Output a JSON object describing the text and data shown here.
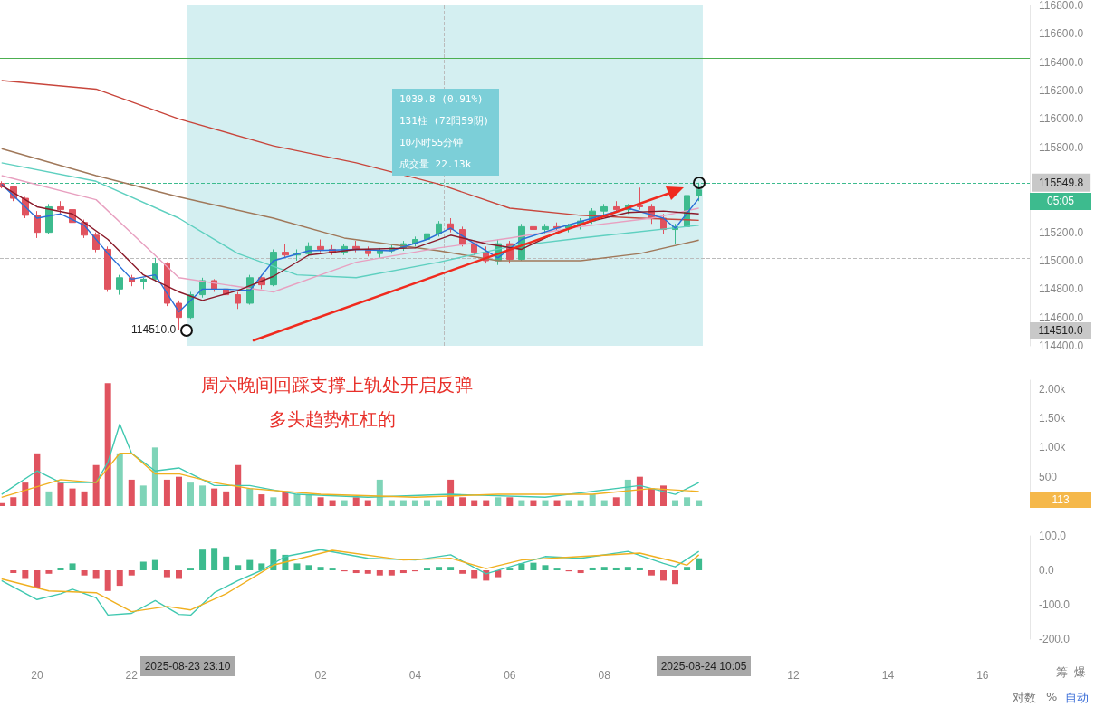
{
  "chart_data": [
    {
      "type": "candlestick",
      "tick_labels": "y",
      "xlim": [
        "2025-08-23T19:13",
        "2025-08-24T17:00"
      ],
      "ylim": [
        114400,
        116800
      ],
      "yticks": [
        {
          "value": 114400,
          "label": "114400.0"
        },
        {
          "value": 114600,
          "label": "114600.0"
        },
        {
          "value": 114800,
          "label": "114800.0"
        },
        {
          "value": 115000,
          "label": "115000.0"
        },
        {
          "value": 115200,
          "label": "115200.0"
        },
        {
          "value": 115800,
          "label": "115800.0"
        },
        {
          "value": 116000,
          "label": "116000.0"
        },
        {
          "value": 116200,
          "label": "116200.0"
        },
        {
          "value": 116400,
          "label": "116400.0"
        },
        {
          "value": 116600,
          "label": "116600.0"
        },
        {
          "value": 116800,
          "label": "116800.0"
        }
      ],
      "x": [
        "2025-08-23T19:15",
        "2025-08-23T19:30",
        "2025-08-23T19:45",
        "2025-08-23T20:00",
        "2025-08-23T20:15",
        "2025-08-23T20:30",
        "2025-08-23T20:45",
        "2025-08-23T21:00",
        "2025-08-23T21:15",
        "2025-08-23T21:30",
        "2025-08-23T21:45",
        "2025-08-23T22:00",
        "2025-08-23T22:15",
        "2025-08-23T22:30",
        "2025-08-23T22:45",
        "2025-08-23T23:00",
        "2025-08-23T23:15",
        "2025-08-23T23:30",
        "2025-08-23T23:45",
        "2025-08-24T00:00",
        "2025-08-24T00:15",
        "2025-08-24T00:30",
        "2025-08-24T00:45",
        "2025-08-24T01:00",
        "2025-08-24T01:15",
        "2025-08-24T01:30",
        "2025-08-24T01:45",
        "2025-08-24T02:00",
        "2025-08-24T02:15",
        "2025-08-24T02:30",
        "2025-08-24T02:45",
        "2025-08-24T03:00",
        "2025-08-24T03:15",
        "2025-08-24T03:30",
        "2025-08-24T03:45",
        "2025-08-24T04:00",
        "2025-08-24T04:15",
        "2025-08-24T04:30",
        "2025-08-24T04:45",
        "2025-08-24T05:00",
        "2025-08-24T05:15",
        "2025-08-24T05:30",
        "2025-08-24T05:45",
        "2025-08-24T06:00",
        "2025-08-24T06:15",
        "2025-08-24T06:30",
        "2025-08-24T06:45",
        "2025-08-24T07:00",
        "2025-08-24T07:15",
        "2025-08-24T07:30",
        "2025-08-24T07:45",
        "2025-08-24T08:00",
        "2025-08-24T08:15",
        "2025-08-24T08:30",
        "2025-08-24T08:45",
        "2025-08-24T09:00",
        "2025-08-24T09:15",
        "2025-08-24T09:30",
        "2025-08-24T09:45",
        "2025-08-24T10:00"
      ],
      "series": [
        {
          "colors": [
            "#e0535f",
            "#e0535f",
            "#e0535f",
            "#e0535f",
            "#3dbb8e",
            "#e0535f",
            "#e0535f",
            "#e0535f",
            "#e0535f",
            "#e0535f",
            "#3dbb8e",
            "#e0535f",
            "#3dbb8e",
            "#3dbb8e",
            "#e0535f",
            "#e0535f",
            "#3dbb8e",
            "#3dbb8e",
            "#e0535f",
            "#e0535f",
            "#e0535f",
            "#3dbb8e",
            "#e0535f",
            "#3dbb8e",
            "#e0535f",
            "#3dbb8e",
            "#3dbb8e",
            "#e0535f",
            "#e0535f",
            "#3dbb8e",
            "#e0535f",
            "#e0535f",
            "#3dbb8e",
            "#3dbb8e",
            "#3dbb8e",
            "#3dbb8e",
            "#3dbb8e",
            "#3dbb8e",
            "#e0535f",
            "#e0535f",
            "#e0535f",
            "#e0535f",
            "#3dbb8e",
            "#e0535f",
            "#3dbb8e",
            "#e0535f",
            "#3dbb8e",
            "#e0535f",
            "#3dbb8e",
            "#3dbb8e",
            "#3dbb8e",
            "#3dbb8e",
            "#e0535f",
            "#3dbb8e",
            "#e0535f",
            "#e0535f",
            "#e0535f",
            "#3dbb8e",
            "#3dbb8e",
            "#3dbb8e"
          ],
          "ohlc": [
            [
              115545,
              115560,
              115510,
              115520
            ],
            [
              115520,
              115530,
              115420,
              115440
            ],
            [
              115440,
              115450,
              115300,
              115320
            ],
            [
              115320,
              115350,
              115160,
              115200
            ],
            [
              115200,
              115400,
              115190,
              115380
            ],
            [
              115380,
              115420,
              115330,
              115360
            ],
            [
              115360,
              115380,
              115250,
              115270
            ],
            [
              115270,
              115290,
              115160,
              115180
            ],
            [
              115180,
              115200,
              115060,
              115080
            ],
            [
              115080,
              115100,
              114780,
              114800
            ],
            [
              114800,
              114900,
              114760,
              114880
            ],
            [
              114880,
              114900,
              114820,
              114850
            ],
            [
              114850,
              114880,
              114800,
              114870
            ],
            [
              114870,
              115020,
              114850,
              114980
            ],
            [
              114980,
              114990,
              114680,
              114700
            ],
            [
              114700,
              114720,
              114510,
              114600
            ],
            [
              114600,
              114780,
              114590,
              114760
            ],
            [
              114760,
              114880,
              114740,
              114860
            ],
            [
              114860,
              114870,
              114780,
              114800
            ],
            [
              114800,
              114820,
              114740,
              114760
            ],
            [
              114760,
              114780,
              114660,
              114700
            ],
            [
              114700,
              114900,
              114690,
              114880
            ],
            [
              114880,
              114900,
              114800,
              114830
            ],
            [
              114830,
              115080,
              114820,
              115060
            ],
            [
              115060,
              115120,
              115020,
              115040
            ],
            [
              115040,
              115080,
              115000,
              115050
            ],
            [
              115050,
              115130,
              115030,
              115100
            ],
            [
              115100,
              115150,
              115060,
              115080
            ],
            [
              115080,
              115110,
              115040,
              115060
            ],
            [
              115060,
              115120,
              115040,
              115100
            ],
            [
              115100,
              115140,
              115060,
              115080
            ],
            [
              115080,
              115100,
              115030,
              115050
            ],
            [
              115050,
              115090,
              115020,
              115070
            ],
            [
              115070,
              115110,
              115050,
              115090
            ],
            [
              115090,
              115140,
              115070,
              115120
            ],
            [
              115120,
              115170,
              115100,
              115150
            ],
            [
              115150,
              115210,
              115130,
              115190
            ],
            [
              115190,
              115280,
              115170,
              115260
            ],
            [
              115260,
              115300,
              115200,
              115220
            ],
            [
              115220,
              115240,
              115100,
              115120
            ],
            [
              115120,
              115130,
              115040,
              115060
            ],
            [
              115060,
              115100,
              114980,
              115000
            ],
            [
              115000,
              115150,
              114970,
              115120
            ],
            [
              115120,
              115140,
              114980,
              115010
            ],
            [
              115010,
              115260,
              115000,
              115240
            ],
            [
              115240,
              115270,
              115200,
              115220
            ],
            [
              115220,
              115260,
              115190,
              115240
            ],
            [
              115240,
              115270,
              115210,
              115230
            ],
            [
              115230,
              115260,
              115200,
              115250
            ],
            [
              115250,
              115300,
              115220,
              115280
            ],
            [
              115280,
              115370,
              115260,
              115350
            ],
            [
              115350,
              115400,
              115320,
              115380
            ],
            [
              115380,
              115420,
              115340,
              115360
            ],
            [
              115360,
              115400,
              115330,
              115390
            ],
            [
              115390,
              115515,
              115360,
              115380
            ],
            [
              115380,
              115400,
              115260,
              115300
            ],
            [
              115300,
              115330,
              115190,
              115220
            ],
            [
              115220,
              115260,
              115120,
              115240
            ],
            [
              115240,
              115480,
              115230,
              115460
            ],
            [
              115460,
              115549.8,
              115420,
              115500
            ]
          ]
        },
        {
          "type": "line",
          "color": "#c8463c",
          "x": [
            "2025-08-23T19:15",
            "2025-08-23T21:15",
            "2025-08-23T23:00",
            "2025-08-24T01:00",
            "2025-08-24T02:45",
            "2025-08-24T04:30",
            "2025-08-24T06:00",
            "2025-08-24T07:30",
            "2025-08-24T08:45",
            "2025-08-24T10:00"
          ],
          "values": [
            116270,
            116210,
            116000,
            115810,
            115690,
            115540,
            115370,
            115320,
            115300,
            115285
          ]
        },
        {
          "type": "line",
          "color": "#a0785a",
          "x": [
            "2025-08-23T19:15",
            "2025-08-23T21:15",
            "2025-08-23T23:00",
            "2025-08-24T01:00",
            "2025-08-24T02:30",
            "2025-08-24T04:30",
            "2025-08-24T05:45",
            "2025-08-24T07:30",
            "2025-08-24T08:45",
            "2025-08-24T10:00"
          ],
          "values": [
            115790,
            115600,
            115450,
            115300,
            115160,
            115070,
            115000,
            115000,
            115050,
            115145
          ]
        },
        {
          "type": "line",
          "color": "#5fd0c0",
          "x": [
            "2025-08-23T19:15",
            "2025-08-23T21:15",
            "2025-08-23T23:00",
            "2025-08-24T00:15",
            "2025-08-24T01:30",
            "2025-08-24T02:45",
            "2025-08-24T04:30",
            "2025-08-24T06:00",
            "2025-08-24T07:30",
            "2025-08-24T10:00"
          ],
          "values": [
            115690,
            115560,
            115300,
            115050,
            114900,
            114880,
            114990,
            115100,
            115160,
            115250
          ]
        },
        {
          "type": "line",
          "color": "#e8a0c0",
          "x": [
            "2025-08-23T19:15",
            "2025-08-23T21:15",
            "2025-08-23T23:00",
            "2025-08-24T01:00",
            "2025-08-24T02:00",
            "2025-08-24T02:45",
            "2025-08-24T04:30",
            "2025-08-24T06:00",
            "2025-08-24T07:30",
            "2025-08-24T09:00",
            "2025-08-24T10:00"
          ],
          "values": [
            115600,
            115430,
            114880,
            114780,
            114900,
            114990,
            115090,
            115160,
            115240,
            115300,
            115370
          ]
        },
        {
          "type": "line",
          "color": "#2a6fd8",
          "x": [
            "2025-08-23T19:15",
            "2025-08-23T20:00",
            "2025-08-23T20:30",
            "2025-08-23T21:00",
            "2025-08-23T21:30",
            "2025-08-23T22:00",
            "2025-08-23T22:30",
            "2025-08-23T23:00",
            "2025-08-23T23:30",
            "2025-08-24T00:00",
            "2025-08-24T00:30",
            "2025-08-24T01:00",
            "2025-08-24T01:45",
            "2025-08-24T02:45",
            "2025-08-24T03:30",
            "2025-08-24T04:15",
            "2025-08-24T04:45",
            "2025-08-24T05:15",
            "2025-08-24T05:45",
            "2025-08-24T06:15",
            "2025-08-24T07:00",
            "2025-08-24T07:45",
            "2025-08-24T08:30",
            "2025-08-24T09:15",
            "2025-08-24T09:30",
            "2025-08-24T10:00"
          ],
          "values": [
            115540,
            115300,
            115330,
            115250,
            115050,
            114870,
            114900,
            114640,
            114800,
            114800,
            114790,
            115000,
            115070,
            115080,
            115070,
            115150,
            115230,
            115120,
            115020,
            115150,
            115230,
            115300,
            115370,
            115300,
            115230,
            115440
          ]
        },
        {
          "type": "line",
          "color": "#8b1a2a",
          "x": [
            "2025-08-23T19:15",
            "2025-08-23T20:00",
            "2025-08-23T20:45",
            "2025-08-23T21:30",
            "2025-08-23T22:15",
            "2025-08-23T23:00",
            "2025-08-23T23:30",
            "2025-08-24T00:15",
            "2025-08-24T01:00",
            "2025-08-24T01:45",
            "2025-08-24T02:45",
            "2025-08-24T04:00",
            "2025-08-24T04:45",
            "2025-08-24T05:30",
            "2025-08-24T06:15",
            "2025-08-24T07:00",
            "2025-08-24T07:45",
            "2025-08-24T08:30",
            "2025-08-24T09:15",
            "2025-08-24T10:00"
          ],
          "values": [
            115530,
            115380,
            115330,
            115150,
            114900,
            114780,
            114720,
            114790,
            114890,
            115040,
            115080,
            115090,
            115180,
            115120,
            115080,
            115200,
            115280,
            115340,
            115350,
            115330
          ]
        }
      ],
      "ref_lines": [
        {
          "axis": "y",
          "value": 116430,
          "color": "#4caf50"
        },
        {
          "axis": "y",
          "value": 115549.8,
          "label": "115549.8",
          "color": "#3dbb8e",
          "line_style": "dashed"
        },
        {
          "axis": "y",
          "value": 115020,
          "color": "#bbbbbb",
          "line_style": "dashed"
        },
        {
          "axis": "x",
          "value": "2025-08-24T04:37",
          "color": "#bbbbbb",
          "line_style": "dashed"
        }
      ],
      "bands": [
        {
          "axis": "x",
          "from": "2025-08-23T23:10",
          "to": "2025-08-24T10:05",
          "color": "#cdecef"
        }
      ],
      "annotations": [
        "1039.8 (0.91%)",
        "131柱 (72阳59阴)",
        "10小时55分钟",
        "成交量 22.13k",
        "05:05",
        {
          "text": "114510.0",
          "x": "2025-08-23T23:10",
          "y": 114510
        }
      ]
    },
    {
      "type": "bar",
      "tick_labels": "y",
      "xlim": [
        "2025-08-23T19:13",
        "2025-08-24T17:00"
      ],
      "ylim": [
        0,
        2150
      ],
      "yticks": [
        500,
        {
          "value": 1000,
          "label": "1.00k"
        },
        {
          "value": 1500,
          "label": "1.50k"
        },
        {
          "value": 2000,
          "label": "2.00k"
        }
      ],
      "x": [
        "2025-08-23T19:15",
        "2025-08-23T19:30",
        "2025-08-23T19:45",
        "2025-08-23T20:00",
        "2025-08-23T20:15",
        "2025-08-23T20:30",
        "2025-08-23T20:45",
        "2025-08-23T21:00",
        "2025-08-23T21:15",
        "2025-08-23T21:30",
        "2025-08-23T21:45",
        "2025-08-23T22:00",
        "2025-08-23T22:15",
        "2025-08-23T22:30",
        "2025-08-23T22:45",
        "2025-08-23T23:00",
        "2025-08-23T23:15",
        "2025-08-23T23:30",
        "2025-08-23T23:45",
        "2025-08-24T00:00",
        "2025-08-24T00:15",
        "2025-08-24T00:30",
        "2025-08-24T00:45",
        "2025-08-24T01:00",
        "2025-08-24T01:15",
        "2025-08-24T01:30",
        "2025-08-24T01:45",
        "2025-08-24T02:00",
        "2025-08-24T02:15",
        "2025-08-24T02:30",
        "2025-08-24T02:45",
        "2025-08-24T03:00",
        "2025-08-24T03:15",
        "2025-08-24T03:30",
        "2025-08-24T03:45",
        "2025-08-24T04:00",
        "2025-08-24T04:15",
        "2025-08-24T04:30",
        "2025-08-24T04:45",
        "2025-08-24T05:00",
        "2025-08-24T05:15",
        "2025-08-24T05:30",
        "2025-08-24T05:45",
        "2025-08-24T06:00",
        "2025-08-24T06:15",
        "2025-08-24T06:30",
        "2025-08-24T06:45",
        "2025-08-24T07:00",
        "2025-08-24T07:15",
        "2025-08-24T07:30",
        "2025-08-24T07:45",
        "2025-08-24T08:00",
        "2025-08-24T08:15",
        "2025-08-24T08:30",
        "2025-08-24T08:45",
        "2025-08-24T09:00",
        "2025-08-24T09:15",
        "2025-08-24T09:30",
        "2025-08-24T09:45",
        "2025-08-24T10:00"
      ],
      "series": [
        {
          "values": [
            50,
            150,
            400,
            900,
            250,
            400,
            300,
            250,
            700,
            2100,
            900,
            450,
            350,
            1000,
            450,
            500,
            400,
            350,
            300,
            250,
            700,
            300,
            200,
            150,
            250,
            200,
            200,
            150,
            100,
            100,
            150,
            100,
            450,
            100,
            100,
            100,
            100,
            100,
            450,
            150,
            100,
            100,
            150,
            150,
            100,
            100,
            100,
            100,
            100,
            100,
            200,
            100,
            150,
            450,
            500,
            300,
            350,
            100,
            150,
            100
          ],
          "colors": [
            "#e0535f",
            "#e0535f",
            "#e0535f",
            "#e0535f",
            "#7fd4b8",
            "#e0535f",
            "#e0535f",
            "#e0535f",
            "#e0535f",
            "#e0535f",
            "#7fd4b8",
            "#e0535f",
            "#7fd4b8",
            "#7fd4b8",
            "#e0535f",
            "#e0535f",
            "#7fd4b8",
            "#7fd4b8",
            "#e0535f",
            "#e0535f",
            "#e0535f",
            "#7fd4b8",
            "#e0535f",
            "#7fd4b8",
            "#e0535f",
            "#7fd4b8",
            "#7fd4b8",
            "#e0535f",
            "#e0535f",
            "#7fd4b8",
            "#e0535f",
            "#e0535f",
            "#7fd4b8",
            "#7fd4b8",
            "#7fd4b8",
            "#7fd4b8",
            "#7fd4b8",
            "#7fd4b8",
            "#e0535f",
            "#e0535f",
            "#e0535f",
            "#e0535f",
            "#7fd4b8",
            "#e0535f",
            "#7fd4b8",
            "#e0535f",
            "#7fd4b8",
            "#e0535f",
            "#7fd4b8",
            "#7fd4b8",
            "#7fd4b8",
            "#7fd4b8",
            "#e0535f",
            "#7fd4b8",
            "#e0535f",
            "#e0535f",
            "#e0535f",
            "#7fd4b8",
            "#7fd4b8",
            "#7fd4b8"
          ]
        },
        {
          "type": "line",
          "color": "#40c8b0",
          "x": [
            "2025-08-23T19:15",
            "2025-08-23T20:00",
            "2025-08-23T20:30",
            "2025-08-23T21:15",
            "2025-08-23T21:30",
            "2025-08-23T21:45",
            "2025-08-23T22:00",
            "2025-08-23T22:30",
            "2025-08-23T23:00",
            "2025-08-23T23:45",
            "2025-08-24T00:30",
            "2025-08-24T01:30",
            "2025-08-24T03:00",
            "2025-08-24T04:45",
            "2025-08-24T06:45",
            "2025-08-24T08:45",
            "2025-08-24T09:30",
            "2025-08-24T10:00"
          ],
          "values": [
            200,
            600,
            400,
            400,
            750,
            1400,
            900,
            600,
            650,
            350,
            350,
            200,
            150,
            200,
            150,
            350,
            200,
            400
          ]
        },
        {
          "type": "line",
          "color": "#f0b020",
          "x": [
            "2025-08-23T19:15",
            "2025-08-23T20:30",
            "2025-08-23T21:15",
            "2025-08-23T21:45",
            "2025-08-23T22:00",
            "2025-08-23T22:30",
            "2025-08-23T23:00",
            "2025-08-23T23:45",
            "2025-08-24T00:30",
            "2025-08-24T02:00",
            "2025-08-24T04:00",
            "2025-08-24T05:45",
            "2025-08-24T07:45",
            "2025-08-24T09:00",
            "2025-08-24T10:00"
          ],
          "values": [
            150,
            450,
            400,
            900,
            900,
            550,
            550,
            400,
            300,
            200,
            150,
            200,
            200,
            300,
            250
          ]
        }
      ],
      "annotations": [
        "周六晚间回踩支撑上轨处开启反弹",
        "多头趋势杠杠的",
        "113"
      ]
    },
    {
      "type": "bar",
      "xlim": [
        "2025-08-23T19:13",
        "2025-08-24T17:00"
      ],
      "ylim": [
        -200,
        100
      ],
      "yticks": [
        {
          "value": -200,
          "label": "-200.0"
        },
        {
          "value": -100,
          "label": "-100.0"
        },
        {
          "value": 0,
          "label": "0.0"
        },
        {
          "value": 100,
          "label": "100.0"
        }
      ],
      "xticks": [
        {
          "value": "2025-08-23T20:00",
          "label": "20"
        },
        {
          "value": "2025-08-23T22:00",
          "label": "22"
        },
        {
          "value": "2025-08-24T02:00",
          "label": "02"
        },
        {
          "value": "2025-08-24T04:00",
          "label": "04"
        },
        {
          "value": "2025-08-24T06:00",
          "label": "06"
        },
        {
          "value": "2025-08-24T08:00",
          "label": "08"
        },
        {
          "value": "2025-08-24T12:00",
          "label": "12"
        },
        {
          "value": "2025-08-24T14:00",
          "label": "14"
        },
        {
          "value": "2025-08-24T16:00",
          "label": "16"
        }
      ],
      "x": [
        "2025-08-23T19:15",
        "2025-08-23T19:30",
        "2025-08-23T19:45",
        "2025-08-23T20:00",
        "2025-08-23T20:15",
        "2025-08-23T20:30",
        "2025-08-23T20:45",
        "2025-08-23T21:00",
        "2025-08-23T21:15",
        "2025-08-23T21:30",
        "2025-08-23T21:45",
        "2025-08-23T22:00",
        "2025-08-23T22:15",
        "2025-08-23T22:30",
        "2025-08-23T22:45",
        "2025-08-23T23:00",
        "2025-08-23T23:15",
        "2025-08-23T23:30",
        "2025-08-23T23:45",
        "2025-08-24T00:00",
        "2025-08-24T00:15",
        "2025-08-24T00:30",
        "2025-08-24T00:45",
        "2025-08-24T01:00",
        "2025-08-24T01:15",
        "2025-08-24T01:30",
        "2025-08-24T01:45",
        "2025-08-24T02:00",
        "2025-08-24T02:15",
        "2025-08-24T02:30",
        "2025-08-24T02:45",
        "2025-08-24T03:00",
        "2025-08-24T03:15",
        "2025-08-24T03:30",
        "2025-08-24T03:45",
        "2025-08-24T04:00",
        "2025-08-24T04:15",
        "2025-08-24T04:30",
        "2025-08-24T04:45",
        "2025-08-24T05:00",
        "2025-08-24T05:15",
        "2025-08-24T05:30",
        "2025-08-24T05:45",
        "2025-08-24T06:00",
        "2025-08-24T06:15",
        "2025-08-24T06:30",
        "2025-08-24T06:45",
        "2025-08-24T07:00",
        "2025-08-24T07:15",
        "2025-08-24T07:30",
        "2025-08-24T07:45",
        "2025-08-24T08:00",
        "2025-08-24T08:15",
        "2025-08-24T08:30",
        "2025-08-24T08:45",
        "2025-08-24T09:00",
        "2025-08-24T09:15",
        "2025-08-24T09:30",
        "2025-08-24T09:45",
        "2025-08-24T10:00"
      ],
      "series": [
        {
          "values": [
            0,
            -8,
            -25,
            -50,
            -10,
            5,
            20,
            -15,
            -25,
            -60,
            -45,
            -15,
            25,
            30,
            -20,
            -25,
            5,
            60,
            65,
            40,
            15,
            30,
            20,
            60,
            45,
            20,
            15,
            10,
            5,
            -3,
            -8,
            -10,
            -15,
            -15,
            -8,
            -3,
            5,
            10,
            10,
            -10,
            -25,
            -30,
            -20,
            5,
            20,
            22,
            15,
            5,
            -3,
            -8,
            8,
            10,
            8,
            10,
            8,
            -15,
            -30,
            -40,
            10,
            35
          ],
          "colors": [
            "#3dbb8e",
            "#e0535f",
            "#e0535f",
            "#e0535f",
            "#e0535f",
            "#3dbb8e",
            "#3dbb8e",
            "#e0535f",
            "#e0535f",
            "#e0535f",
            "#e0535f",
            "#e0535f",
            "#3dbb8e",
            "#3dbb8e",
            "#e0535f",
            "#e0535f",
            "#3dbb8e",
            "#3dbb8e",
            "#3dbb8e",
            "#3dbb8e",
            "#3dbb8e",
            "#3dbb8e",
            "#3dbb8e",
            "#3dbb8e",
            "#3dbb8e",
            "#3dbb8e",
            "#3dbb8e",
            "#3dbb8e",
            "#3dbb8e",
            "#e0535f",
            "#e0535f",
            "#e0535f",
            "#e0535f",
            "#e0535f",
            "#e0535f",
            "#e0535f",
            "#3dbb8e",
            "#3dbb8e",
            "#3dbb8e",
            "#e0535f",
            "#e0535f",
            "#e0535f",
            "#e0535f",
            "#3dbb8e",
            "#3dbb8e",
            "#3dbb8e",
            "#3dbb8e",
            "#3dbb8e",
            "#e0535f",
            "#e0535f",
            "#3dbb8e",
            "#3dbb8e",
            "#3dbb8e",
            "#3dbb8e",
            "#3dbb8e",
            "#e0535f",
            "#e0535f",
            "#e0535f",
            "#3dbb8e",
            "#3dbb8e"
          ]
        },
        {
          "type": "line",
          "color": "#40c8b0",
          "x": [
            "2025-08-23T19:15",
            "2025-08-23T20:00",
            "2025-08-23T20:30",
            "2025-08-23T20:45",
            "2025-08-23T21:15",
            "2025-08-23T21:30",
            "2025-08-23T22:00",
            "2025-08-23T22:30",
            "2025-08-23T23:00",
            "2025-08-23T23:15",
            "2025-08-23T23:45",
            "2025-08-24T00:15",
            "2025-08-24T00:45",
            "2025-08-24T01:15",
            "2025-08-24T02:00",
            "2025-08-24T03:00",
            "2025-08-24T04:00",
            "2025-08-24T04:45",
            "2025-08-24T05:30",
            "2025-08-24T06:00",
            "2025-08-24T06:45",
            "2025-08-24T07:30",
            "2025-08-24T08:30",
            "2025-08-24T09:15",
            "2025-08-24T09:30",
            "2025-08-24T10:00"
          ],
          "values": [
            -30,
            -85,
            -68,
            -55,
            -80,
            -130,
            -125,
            -88,
            -128,
            -130,
            -65,
            -30,
            0,
            40,
            60,
            35,
            30,
            45,
            -10,
            10,
            40,
            35,
            55,
            20,
            10,
            55
          ]
        },
        {
          "type": "line",
          "color": "#f0b020",
          "x": [
            "2025-08-23T19:15",
            "2025-08-23T20:15",
            "2025-08-23T21:15",
            "2025-08-23T22:00",
            "2025-08-23T22:45",
            "2025-08-23T23:15",
            "2025-08-24T00:00",
            "2025-08-24T01:00",
            "2025-08-24T02:15",
            "2025-08-24T03:45",
            "2025-08-24T04:45",
            "2025-08-24T05:30",
            "2025-08-24T06:15",
            "2025-08-24T07:30",
            "2025-08-24T08:45",
            "2025-08-24T09:30",
            "2025-08-24T09:45",
            "2025-08-24T10:00"
          ],
          "values": [
            -25,
            -60,
            -65,
            -120,
            -105,
            -115,
            -68,
            15,
            58,
            30,
            35,
            5,
            30,
            40,
            50,
            25,
            15,
            45
          ]
        }
      ],
      "annotations": [
        "2025-08-23 23:10",
        "2025-08-24 10:05",
        "筹",
        "爆",
        "对数",
        "%",
        "自动"
      ]
    }
  ]
}
